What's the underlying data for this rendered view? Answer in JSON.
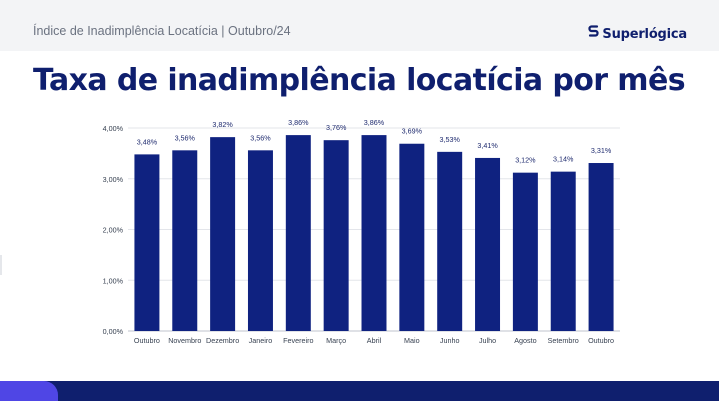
{
  "header": {
    "title": "Índice de Inadimplência Locatícia | Outubro/24",
    "brand_name": "Superlógica",
    "brand_icon": "superlogica-logo-icon"
  },
  "main_title": "Taxa de inadimplência locatícia por mês",
  "colors": {
    "bar": "#0f2280",
    "title": "#0f1f6e",
    "footer": "#0f1f6e",
    "footer_accent": "#4f46e5"
  },
  "chart_data": {
    "type": "bar",
    "title": "",
    "xlabel": "",
    "ylabel": "",
    "categories": [
      "Outubro",
      "Novembro",
      "Dezembro",
      "Janeiro",
      "Fevereiro",
      "Março",
      "Abril",
      "Maio",
      "Junho",
      "Julho",
      "Agosto",
      "Setembro",
      "Outubro"
    ],
    "values": [
      3.48,
      3.56,
      3.82,
      3.56,
      3.86,
      3.76,
      3.86,
      3.69,
      3.53,
      3.41,
      3.12,
      3.14,
      3.31
    ],
    "value_labels": [
      "3,48%",
      "3,56%",
      "3,82%",
      "3,56%",
      "3,86%",
      "3,76%",
      "3,86%",
      "3,69%",
      "3,53%",
      "3,41%",
      "3,12%",
      "3,14%",
      "3,31%"
    ],
    "y_ticks": [
      0,
      1,
      2,
      3,
      4
    ],
    "y_tick_labels": [
      "0,00%",
      "1,00%",
      "2,00%",
      "3,00%",
      "4,00%"
    ],
    "ylim": [
      0,
      4
    ],
    "grid": true,
    "legend": "none"
  }
}
